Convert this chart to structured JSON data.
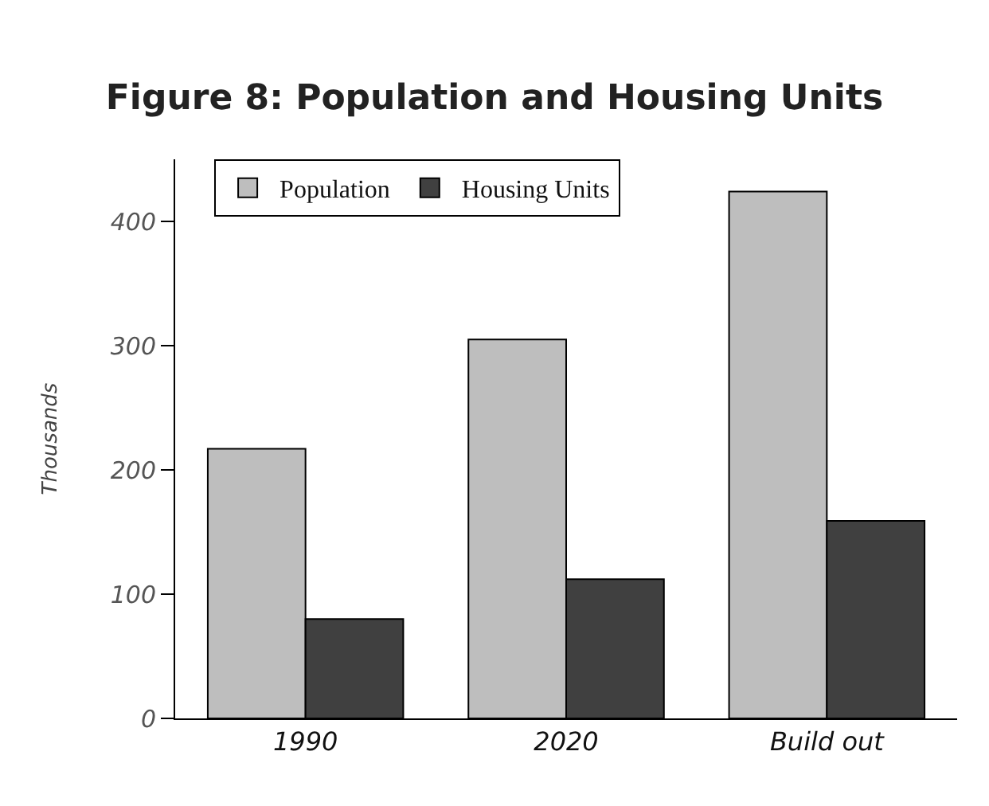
{
  "chart_data": {
    "type": "bar",
    "title": "Figure 8: Population and Housing Units",
    "ylabel": "Thousands",
    "categories": [
      "1990",
      "2020",
      "Build out"
    ],
    "series": [
      {
        "name": "Population",
        "color": "#bebebe",
        "values": [
          217,
          305,
          424
        ]
      },
      {
        "name": "Housing Units",
        "color": "#404040",
        "values": [
          80,
          112,
          159
        ]
      }
    ],
    "ylim": [
      0,
      450
    ],
    "yticks": [
      0,
      100,
      200,
      300,
      400
    ],
    "grid": false,
    "legend": "top left"
  }
}
